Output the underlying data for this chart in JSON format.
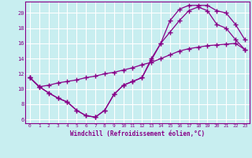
{
  "xlabel": "Windchill (Refroidissement éolien,°C)",
  "bg_color": "#c8eef0",
  "line_color": "#880088",
  "grid_color": "#ffffff",
  "xlim": [
    -0.5,
    23.5
  ],
  "ylim": [
    5.5,
    21.5
  ],
  "xticks": [
    0,
    1,
    2,
    3,
    4,
    5,
    6,
    7,
    8,
    9,
    10,
    11,
    12,
    13,
    14,
    15,
    16,
    17,
    18,
    19,
    20,
    21,
    22,
    23
  ],
  "yticks": [
    6,
    8,
    10,
    12,
    14,
    16,
    18,
    20
  ],
  "line1_x": [
    0,
    1,
    2,
    3,
    4,
    5,
    6,
    7,
    8,
    9,
    10,
    11,
    12,
    13,
    14,
    15,
    16,
    17,
    18,
    19,
    20,
    21,
    22,
    23
  ],
  "line1_y": [
    11.5,
    10.3,
    9.5,
    8.8,
    8.3,
    7.2,
    6.5,
    6.3,
    7.2,
    9.3,
    10.5,
    11.0,
    11.5,
    13.8,
    16.0,
    19.0,
    20.5,
    21.0,
    21.0,
    21.0,
    20.3,
    20.0,
    18.5,
    16.5
  ],
  "line2_x": [
    0,
    1,
    2,
    3,
    4,
    5,
    6,
    7,
    8,
    9,
    10,
    11,
    12,
    13,
    14,
    15,
    16,
    17,
    18,
    19,
    20,
    21,
    22,
    23
  ],
  "line2_y": [
    11.5,
    10.3,
    9.5,
    8.8,
    8.3,
    7.2,
    6.5,
    6.3,
    7.2,
    9.3,
    10.5,
    11.0,
    11.5,
    14.0,
    16.0,
    17.5,
    19.0,
    20.3,
    20.8,
    20.3,
    18.5,
    18.0,
    16.5,
    15.2
  ],
  "line3_x": [
    0,
    1,
    2,
    3,
    4,
    5,
    6,
    7,
    8,
    9,
    10,
    11,
    12,
    13,
    14,
    15,
    16,
    17,
    18,
    19,
    20,
    21,
    22,
    23
  ],
  "line3_y": [
    11.5,
    10.3,
    10.5,
    10.8,
    11.0,
    11.2,
    11.5,
    11.7,
    12.0,
    12.2,
    12.5,
    12.8,
    13.2,
    13.5,
    14.0,
    14.5,
    15.0,
    15.3,
    15.5,
    15.7,
    15.8,
    15.9,
    16.0,
    15.2
  ]
}
